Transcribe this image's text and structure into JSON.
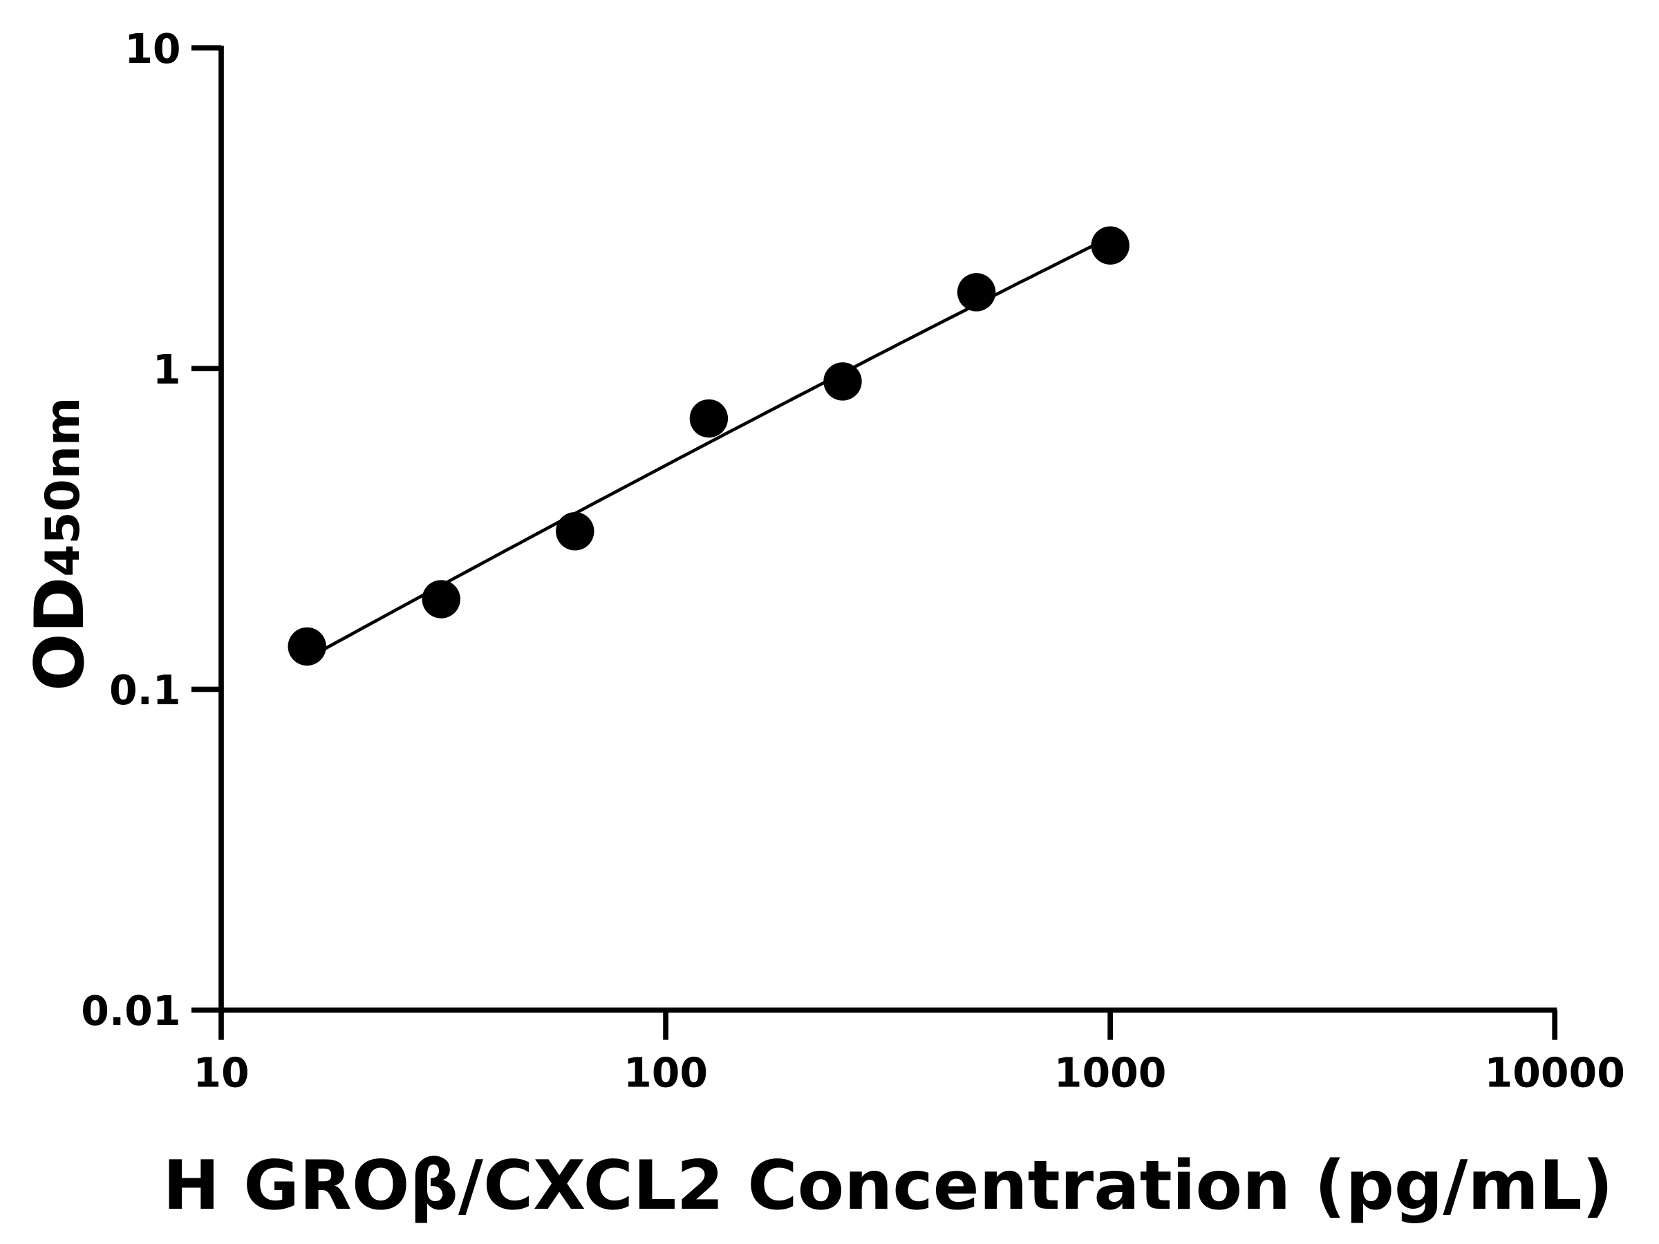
{
  "chart_data": {
    "type": "scatter",
    "title": "",
    "xlabel": "H GROβ/CXCL2 Concentration (pg/mL)",
    "ylabel_main": "OD",
    "ylabel_sub": "450nm",
    "x_scale": "log",
    "y_scale": "log",
    "xlim": [
      10,
      10000
    ],
    "ylim": [
      0.01,
      10
    ],
    "x_ticks": [
      "10",
      "100",
      "1000",
      "10000"
    ],
    "y_ticks": [
      "0.01",
      "0.1",
      "1",
      "10"
    ],
    "grid": false,
    "legend": "none",
    "fit_curve": true,
    "color": "#000000",
    "series": [
      {
        "x": [
          15.6,
          31.25,
          62.5,
          125,
          250,
          500,
          1000
        ],
        "y": [
          0.136,
          0.191,
          0.311,
          0.699,
          0.912,
          1.73,
          2.42
        ]
      }
    ]
  }
}
